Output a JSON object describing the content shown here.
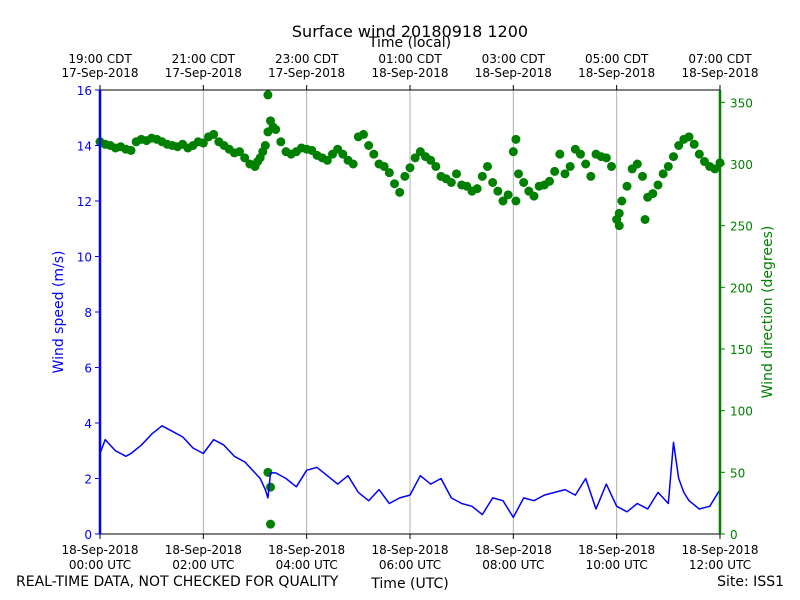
{
  "chart_data": {
    "type": "line+scatter",
    "title": "Surface wind 20180918 1200",
    "top_axis_label": "Time (local)",
    "xlabel": "Time (UTC)",
    "ylabel_left": "Wind speed (m/s)",
    "ylabel_right": "Wind direction (degrees)",
    "grid": "vertical",
    "colors": {
      "speed": "#0000ff",
      "direction": "#008000",
      "grid": "#b0b0b0"
    },
    "x_range_hours": [
      0,
      12
    ],
    "ylim_left": [
      0,
      16
    ],
    "ylim_right": [
      0,
      360
    ],
    "yticks_left": [
      "0",
      "2",
      "4",
      "6",
      "8",
      "10",
      "12",
      "14",
      "16"
    ],
    "yticks_right": [
      "0",
      "50",
      "100",
      "150",
      "200",
      "250",
      "300",
      "350"
    ],
    "xticks_bottom": [
      {
        "hour": 0,
        "line1": "18-Sep-2018",
        "line2": "00:00 UTC"
      },
      {
        "hour": 2,
        "line1": "18-Sep-2018",
        "line2": "02:00 UTC"
      },
      {
        "hour": 4,
        "line1": "18-Sep-2018",
        "line2": "04:00 UTC"
      },
      {
        "hour": 6,
        "line1": "18-Sep-2018",
        "line2": "06:00 UTC"
      },
      {
        "hour": 8,
        "line1": "18-Sep-2018",
        "line2": "08:00 UTC"
      },
      {
        "hour": 10,
        "line1": "18-Sep-2018",
        "line2": "10:00 UTC"
      },
      {
        "hour": 12,
        "line1": "18-Sep-2018",
        "line2": "12:00 UTC"
      }
    ],
    "xticks_top": [
      {
        "hour": 0,
        "line1": "19:00 CDT",
        "line2": "17-Sep-2018"
      },
      {
        "hour": 2,
        "line1": "21:00 CDT",
        "line2": "17-Sep-2018"
      },
      {
        "hour": 4,
        "line1": "23:00 CDT",
        "line2": "17-Sep-2018"
      },
      {
        "hour": 6,
        "line1": "01:00 CDT",
        "line2": "18-Sep-2018"
      },
      {
        "hour": 8,
        "line1": "03:00 CDT",
        "line2": "18-Sep-2018"
      },
      {
        "hour": 10,
        "line1": "05:00 CDT",
        "line2": "18-Sep-2018"
      },
      {
        "hour": 12,
        "line1": "07:00 CDT",
        "line2": "18-Sep-2018"
      }
    ],
    "series": [
      {
        "name": "Wind speed (m/s)",
        "kind": "line",
        "axis": "left",
        "x_hours": [
          0,
          0.1,
          0.2,
          0.3,
          0.4,
          0.5,
          0.6,
          0.8,
          1.0,
          1.2,
          1.4,
          1.6,
          1.8,
          2.0,
          2.2,
          2.4,
          2.6,
          2.8,
          3.0,
          3.1,
          3.2,
          3.25,
          3.3,
          3.4,
          3.6,
          3.8,
          4.0,
          4.2,
          4.4,
          4.6,
          4.8,
          5.0,
          5.2,
          5.4,
          5.6,
          5.8,
          6.0,
          6.2,
          6.4,
          6.6,
          6.8,
          7.0,
          7.2,
          7.4,
          7.6,
          7.8,
          8.0,
          8.2,
          8.4,
          8.6,
          8.8,
          9.0,
          9.2,
          9.4,
          9.6,
          9.8,
          10.0,
          10.2,
          10.4,
          10.6,
          10.8,
          11.0,
          11.1,
          11.2,
          11.3,
          11.4,
          11.6,
          11.8,
          12.0
        ],
        "values": [
          2.9,
          3.4,
          3.2,
          3.0,
          2.9,
          2.8,
          2.9,
          3.2,
          3.6,
          3.9,
          3.7,
          3.5,
          3.1,
          2.9,
          3.4,
          3.2,
          2.8,
          2.6,
          2.2,
          2.0,
          1.6,
          1.3,
          2.2,
          2.2,
          2.0,
          1.7,
          2.3,
          2.4,
          2.1,
          1.8,
          2.1,
          1.5,
          1.2,
          1.6,
          1.1,
          1.3,
          1.4,
          2.1,
          1.8,
          2.0,
          1.3,
          1.1,
          1.0,
          0.7,
          1.3,
          1.2,
          0.6,
          1.3,
          1.2,
          1.4,
          1.5,
          1.6,
          1.4,
          2.0,
          0.9,
          1.8,
          1.0,
          0.8,
          1.1,
          0.9,
          1.5,
          1.1,
          3.3,
          2.0,
          1.5,
          1.2,
          0.9,
          1.0,
          1.6
        ]
      },
      {
        "name": "Wind direction (degrees)",
        "kind": "scatter",
        "axis": "right",
        "x_hours": [
          0,
          0.1,
          0.2,
          0.3,
          0.4,
          0.5,
          0.6,
          0.7,
          0.8,
          0.9,
          1.0,
          1.1,
          1.2,
          1.3,
          1.4,
          1.5,
          1.6,
          1.7,
          1.8,
          1.9,
          2.0,
          2.1,
          2.2,
          2.3,
          2.4,
          2.5,
          2.6,
          2.7,
          2.8,
          2.9,
          3.0,
          3.05,
          3.1,
          3.15,
          3.2,
          3.25,
          3.3,
          3.35,
          3.4,
          3.5,
          3.6,
          3.7,
          3.8,
          3.9,
          4.0,
          4.1,
          4.2,
          4.3,
          4.4,
          4.5,
          4.6,
          4.7,
          4.8,
          4.9,
          5.0,
          5.1,
          5.2,
          5.3,
          5.4,
          5.5,
          5.6,
          5.7,
          5.8,
          5.9,
          6.0,
          6.1,
          6.2,
          6.3,
          6.4,
          6.5,
          6.6,
          6.7,
          6.8,
          6.9,
          7.0,
          7.1,
          7.2,
          7.3,
          7.4,
          7.5,
          7.6,
          7.7,
          7.8,
          7.9,
          8.0,
          8.05,
          8.1,
          8.2,
          8.3,
          8.4,
          8.5,
          8.6,
          8.7,
          8.8,
          8.9,
          9.0,
          9.1,
          9.2,
          9.3,
          9.4,
          9.5,
          9.6,
          9.7,
          9.8,
          9.9,
          10.0,
          10.05,
          10.1,
          10.2,
          10.3,
          10.4,
          10.5,
          10.6,
          10.7,
          10.8,
          10.9,
          11.0,
          11.1,
          11.2,
          11.3,
          11.4,
          11.5,
          11.6,
          11.7,
          11.8,
          11.9,
          12.0,
          3.25,
          3.25,
          3.3,
          3.3,
          10.55,
          8.05,
          10.05
        ],
        "values": [
          318,
          316,
          315,
          313,
          314,
          312,
          311,
          318,
          320,
          319,
          321,
          320,
          318,
          316,
          315,
          314,
          316,
          313,
          315,
          318,
          317,
          322,
          324,
          318,
          315,
          312,
          309,
          310,
          305,
          300,
          298,
          302,
          305,
          310,
          315,
          326,
          335,
          330,
          328,
          318,
          310,
          308,
          310,
          313,
          312,
          311,
          307,
          305,
          303,
          308,
          312,
          308,
          303,
          300,
          322,
          324,
          315,
          308,
          300,
          298,
          293,
          284,
          277,
          290,
          297,
          305,
          310,
          306,
          303,
          298,
          290,
          288,
          285,
          292,
          283,
          282,
          278,
          280,
          290,
          298,
          285,
          278,
          270,
          275,
          310,
          320,
          292,
          285,
          278,
          274,
          282,
          283,
          286,
          294,
          308,
          292,
          298,
          312,
          308,
          300,
          290,
          308,
          306,
          305,
          298,
          255,
          260,
          270,
          282,
          296,
          300,
          290,
          273,
          276,
          283,
          292,
          298,
          306,
          315,
          320,
          322,
          316,
          308,
          302,
          298,
          296,
          301,
          356,
          50,
          38,
          8,
          255,
          270,
          250
        ]
      }
    ]
  },
  "footer": {
    "left_note": "REAL-TIME DATA, NOT CHECKED FOR QUALITY",
    "right_note": "Site: ISS1"
  }
}
